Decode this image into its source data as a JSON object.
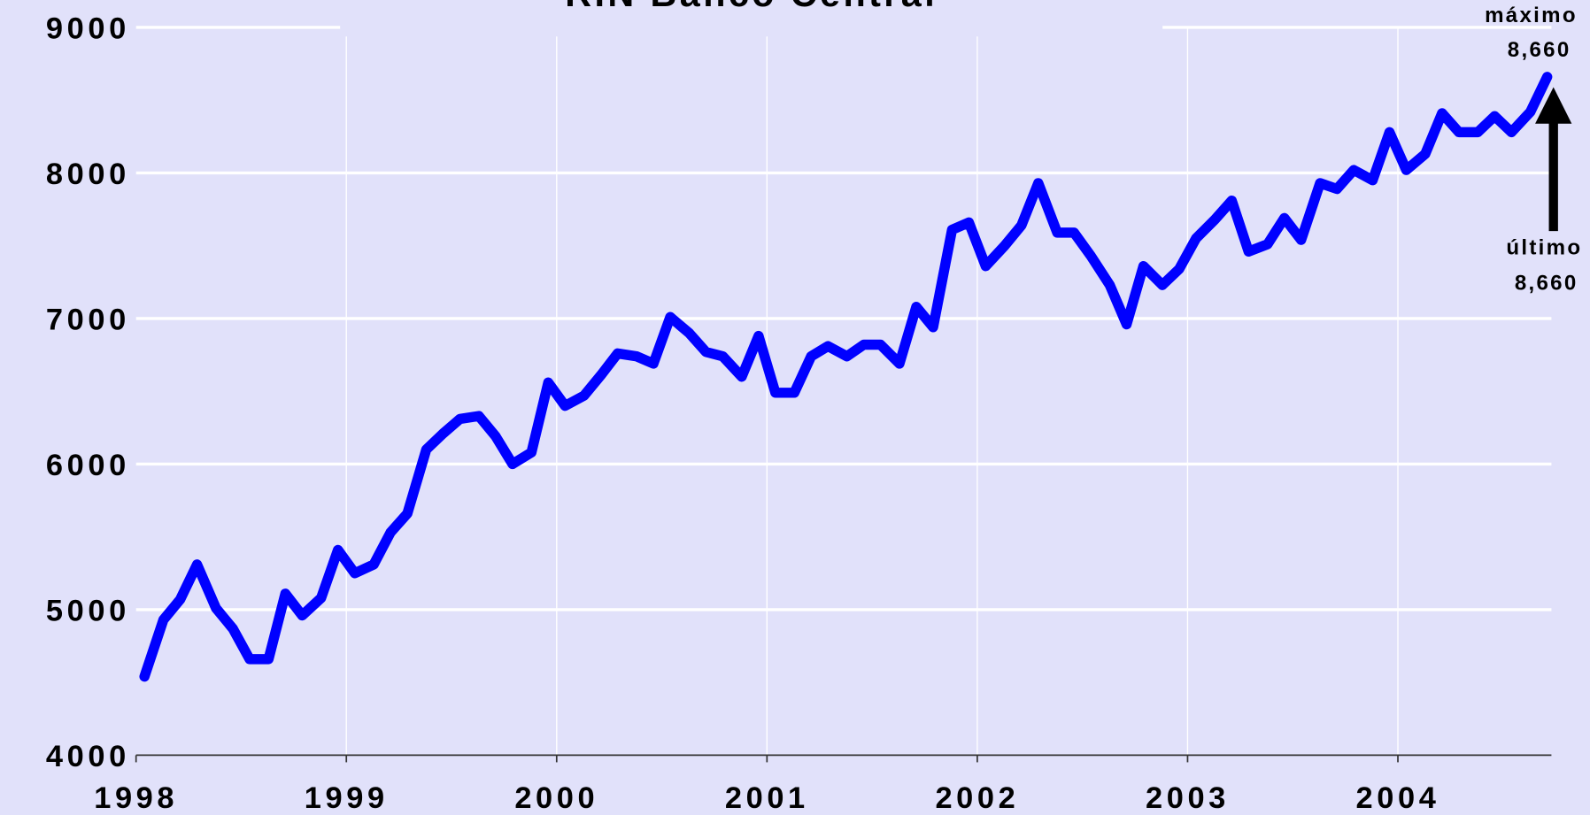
{
  "chart_data": {
    "type": "line",
    "title": "RIN Banco Central",
    "x": [
      1998.04,
      1998.13,
      1998.21,
      1998.29,
      1998.38,
      1998.46,
      1998.54,
      1998.63,
      1998.71,
      1998.79,
      1998.88,
      1998.96,
      1999.04,
      1999.13,
      1999.21,
      1999.29,
      1999.38,
      1999.46,
      1999.54,
      1999.63,
      1999.71,
      1999.79,
      1999.88,
      1999.96,
      2000.04,
      2000.13,
      2000.21,
      2000.29,
      2000.38,
      2000.46,
      2000.54,
      2000.63,
      2000.71,
      2000.79,
      2000.88,
      2000.96,
      2001.04,
      2001.13,
      2001.21,
      2001.29,
      2001.38,
      2001.46,
      2001.54,
      2001.63,
      2001.71,
      2001.79,
      2001.88,
      2001.96,
      2002.04,
      2002.13,
      2002.21,
      2002.29,
      2002.38,
      2002.46,
      2002.54,
      2002.63,
      2002.71,
      2002.79,
      2002.88,
      2002.96,
      2003.04,
      2003.13,
      2003.21,
      2003.29,
      2003.38,
      2003.46,
      2003.54,
      2003.63,
      2003.71,
      2003.79,
      2003.88,
      2003.96,
      2004.04,
      2004.13,
      2004.21,
      2004.29,
      2004.38,
      2004.46,
      2004.54,
      2004.63,
      2004.71
    ],
    "series": [
      {
        "color": "#0000ff",
        "values": [
          4540,
          4930,
          5070,
          5310,
          5010,
          4870,
          4660,
          4660,
          5110,
          4960,
          5080,
          5410,
          5250,
          5310,
          5530,
          5660,
          6100,
          6210,
          6310,
          6330,
          6190,
          6000,
          6080,
          6560,
          6400,
          6470,
          6610,
          6760,
          6740,
          6690,
          7010,
          6900,
          6770,
          6740,
          6600,
          6880,
          6490,
          6490,
          6740,
          6810,
          6740,
          6820,
          6820,
          6690,
          7080,
          6940,
          7610,
          7660,
          7360,
          7500,
          7640,
          7930,
          7590,
          7590,
          7430,
          7230,
          6960,
          7360,
          7230,
          7340,
          7550,
          7680,
          7810,
          7460,
          7510,
          7690,
          7540,
          7930,
          7890,
          8020,
          7950,
          8280,
          8020,
          8130,
          8410,
          8280,
          8280,
          8390,
          8280,
          8420,
          8660
        ]
      }
    ],
    "xlim": [
      1998,
      2004.73
    ],
    "xticks": [
      1998,
      1999,
      2000,
      2001,
      2002,
      2003,
      2004
    ],
    "ylim": [
      4000,
      9000
    ],
    "yticks": [
      4000,
      5000,
      6000,
      7000,
      8000,
      9000
    ],
    "grid": true,
    "annotations": [
      "máximo",
      "8,660",
      "último",
      "8,660"
    ]
  }
}
